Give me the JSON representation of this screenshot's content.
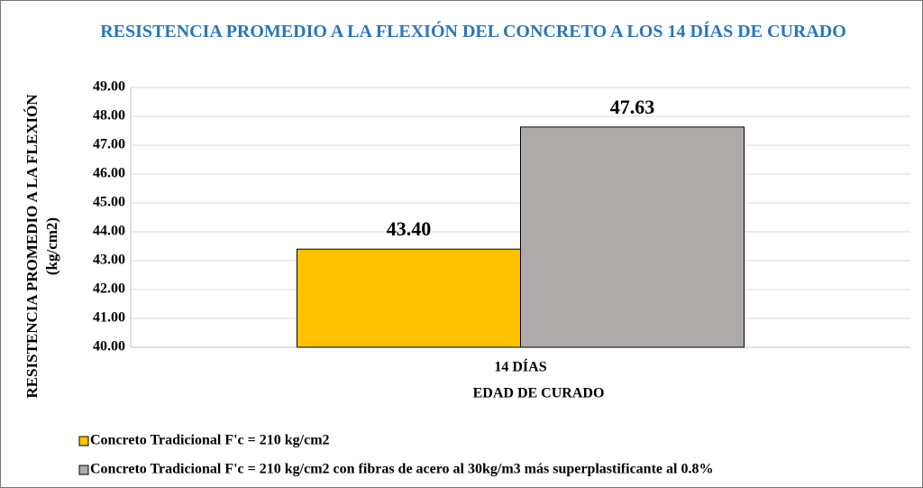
{
  "chart_data": {
    "type": "bar",
    "title": "RESISTENCIA PROMEDIO A LA FLEXIÓN DEL CONCRETO  A LOS 14 DÍAS DE CURADO",
    "x_label": "EDAD DE CURADO",
    "y_label": "RESISTENCIA PROMEDIO A LA FLEXIÓN (kg/cm2)",
    "categories": [
      "14 DÍAS"
    ],
    "series": [
      {
        "name": "Concreto Tradicional F'c = 210 kg/cm2",
        "color": "#FFC000",
        "values": [
          43.4
        ],
        "value_labels": [
          "43.40"
        ]
      },
      {
        "name": "Concreto Tradicional F'c = 210 kg/cm2 con fibras de acero al 30kg/m3 más superplastificante al 0.8%",
        "color": "#AEAAAA",
        "values": [
          47.63
        ],
        "value_labels": [
          "47.63"
        ]
      }
    ],
    "ylim": [
      40,
      49
    ],
    "yticks": [
      {
        "value": 40,
        "label": "40.00"
      },
      {
        "value": 41,
        "label": "41.00"
      },
      {
        "value": 42,
        "label": "42.00"
      },
      {
        "value": 43,
        "label": "43.00"
      },
      {
        "value": 44,
        "label": "44.00"
      },
      {
        "value": 45,
        "label": "45.00"
      },
      {
        "value": 46,
        "label": "46.00"
      },
      {
        "value": 47,
        "label": "47.00"
      },
      {
        "value": 48,
        "label": "48.00"
      },
      {
        "value": 49,
        "label": "49.00"
      }
    ],
    "grid": true,
    "legend": "bottom-left"
  }
}
